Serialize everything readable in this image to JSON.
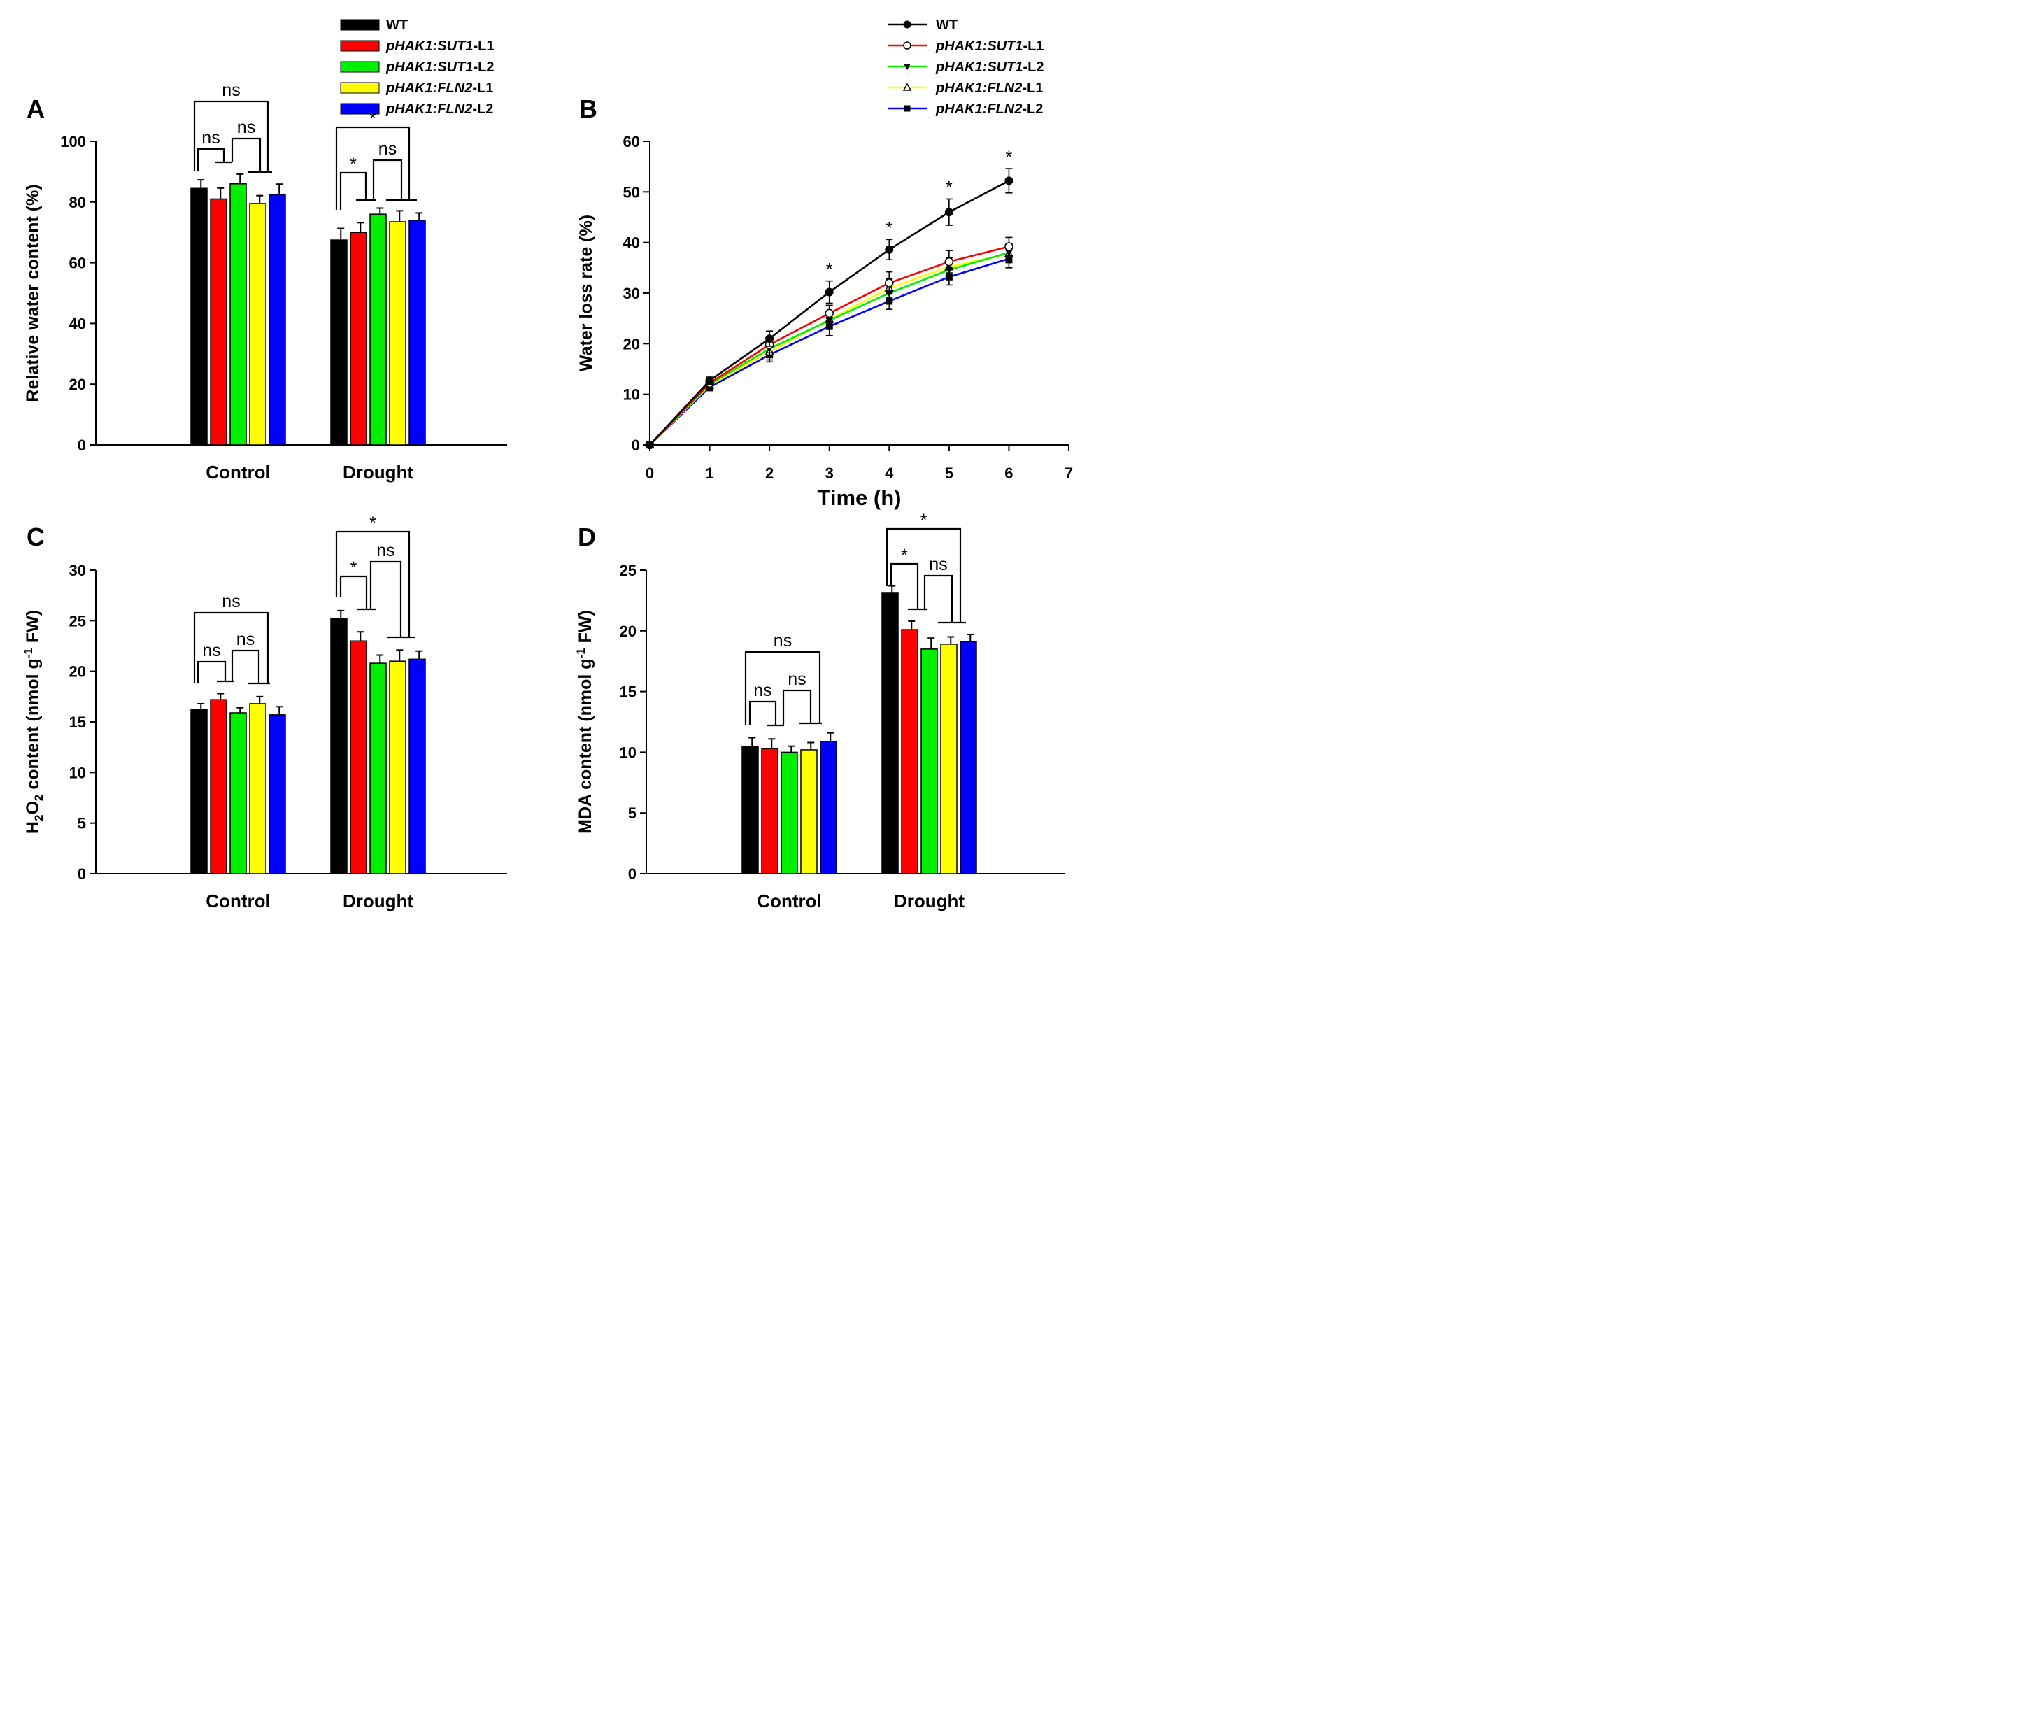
{
  "figure": {
    "legend_bar": [
      "WT",
      "pHAK1:SUT1-L1",
      "pHAK1:SUT1-L2",
      "pHAK1:FLN2-L1",
      "pHAK1:FLN2-L2"
    ],
    "legend_line": [
      "WT",
      "pHAK1:SUT1-L1",
      "pHAK1:SUT1-L2",
      "pHAK1:FLN2-L1",
      "pHAK1:FLN2-L2"
    ],
    "colors": {
      "wt": "#000000",
      "sut1_l1": "#ff0000",
      "sut1_l2": "#00ee00",
      "fln2_l1": "#ffff00",
      "fln2_l2": "#0000ff"
    }
  },
  "chart_data": [
    {
      "id": "A",
      "type": "bar",
      "panel_label": "A",
      "ylabel": "Relative water content (%)",
      "xlabel": "",
      "categories": [
        "Control",
        "Drought"
      ],
      "ylim": [
        0,
        100
      ],
      "yticks": [
        0,
        20,
        40,
        60,
        80,
        100
      ],
      "ytick_labels": [
        "0",
        "20",
        "40",
        "60",
        "80",
        "100"
      ],
      "series": [
        {
          "name": "WT",
          "values": [
            84.5,
            67.5
          ],
          "errors": [
            2.8,
            3.8
          ]
        },
        {
          "name": "pHAK1:SUT1-L1",
          "values": [
            81.0,
            70.0
          ],
          "errors": [
            3.6,
            3.2
          ]
        },
        {
          "name": "pHAK1:SUT1-L2",
          "values": [
            86.0,
            76.0
          ],
          "errors": [
            3.2,
            2.0
          ]
        },
        {
          "name": "pHAK1:FLN2-L1",
          "values": [
            79.5,
            73.5
          ],
          "errors": [
            2.6,
            3.6
          ]
        },
        {
          "name": "pHAK1:FLN2-L2",
          "values": [
            82.5,
            74.0
          ],
          "errors": [
            3.4,
            2.4
          ]
        }
      ],
      "annotations": {
        "Control": [
          "ns",
          "ns",
          "ns"
        ],
        "Drought": [
          "*",
          "ns",
          "*"
        ]
      }
    },
    {
      "id": "B",
      "type": "line",
      "panel_label": "B",
      "ylabel": "Water loss rate (%)",
      "xlabel": "Time (h)",
      "xlim": [
        0,
        7
      ],
      "ylim": [
        0,
        60
      ],
      "xticks": [
        0,
        1,
        2,
        3,
        4,
        5,
        6,
        7
      ],
      "xtick_labels": [
        "0",
        "1",
        "2",
        "3",
        "4",
        "5",
        "6",
        "7"
      ],
      "yticks": [
        0,
        10,
        20,
        30,
        40,
        50,
        60
      ],
      "ytick_labels": [
        "0",
        "10",
        "20",
        "30",
        "40",
        "50",
        "60"
      ],
      "x": [
        0,
        1,
        2,
        3,
        4,
        5,
        6
      ],
      "series": [
        {
          "name": "WT",
          "marker": "filled-circle",
          "values": [
            0,
            12.7,
            21.0,
            30.2,
            38.6,
            46.0,
            52.2
          ],
          "errors": [
            0,
            0.7,
            1.5,
            2.2,
            2.0,
            2.6,
            2.4
          ]
        },
        {
          "name": "pHAK1:SUT1-L1",
          "marker": "open-circle",
          "values": [
            0,
            12.2,
            19.8,
            26.0,
            32.0,
            36.2,
            39.2
          ],
          "errors": [
            0,
            0.7,
            1.6,
            1.6,
            2.2,
            2.2,
            1.8
          ]
        },
        {
          "name": "pHAK1:SUT1-L2",
          "marker": "filled-triangle-down",
          "values": [
            0,
            12.0,
            19.0,
            24.6,
            30.0,
            34.6,
            38.0
          ],
          "errors": [
            0,
            0.7,
            1.6,
            1.6,
            1.8,
            1.8,
            1.8
          ]
        },
        {
          "name": "pHAK1:FLN2-L1",
          "marker": "open-triangle-up",
          "values": [
            0,
            11.8,
            18.4,
            24.8,
            31.0,
            35.2,
            37.8
          ],
          "errors": [
            0,
            0.7,
            1.6,
            1.6,
            1.8,
            1.8,
            1.8
          ]
        },
        {
          "name": "pHAK1:FLN2-L2",
          "marker": "filled-square",
          "values": [
            0,
            11.4,
            17.8,
            23.4,
            28.4,
            33.2,
            36.8
          ],
          "errors": [
            0,
            0.7,
            1.4,
            1.8,
            1.6,
            1.6,
            1.8
          ]
        }
      ],
      "star_x": [
        3,
        4,
        5,
        6
      ],
      "star_labels": [
        "*",
        "*",
        "*",
        "*"
      ]
    },
    {
      "id": "C",
      "type": "bar",
      "panel_label": "C",
      "ylabel": "H2O2 content (nmol g-1 FW)",
      "xlabel": "",
      "ylabel_parts": {
        "a": "H",
        "sub1": "2",
        "b": "O",
        "sub2": "2",
        "c": " content (nmol g",
        "sup": "-1",
        "d": " FW)"
      },
      "categories": [
        "Control",
        "Drought"
      ],
      "ylim": [
        0,
        30
      ],
      "yticks": [
        0,
        5,
        10,
        15,
        20,
        25,
        30
      ],
      "ytick_labels": [
        "0",
        "5",
        "10",
        "15",
        "20",
        "25",
        "30"
      ],
      "series": [
        {
          "name": "WT",
          "values": [
            16.2,
            25.2
          ],
          "errors": [
            0.6,
            0.8
          ]
        },
        {
          "name": "pHAK1:SUT1-L1",
          "values": [
            17.2,
            23.0
          ],
          "errors": [
            0.6,
            0.9
          ]
        },
        {
          "name": "pHAK1:SUT1-L2",
          "values": [
            15.9,
            20.8
          ],
          "errors": [
            0.5,
            0.8
          ]
        },
        {
          "name": "pHAK1:FLN2-L1",
          "values": [
            16.8,
            21.0
          ],
          "errors": [
            0.7,
            1.1
          ]
        },
        {
          "name": "pHAK1:FLN2-L2",
          "values": [
            15.7,
            21.2
          ],
          "errors": [
            0.8,
            0.8
          ]
        }
      ],
      "annotations": {
        "Control": [
          "ns",
          "ns",
          "ns"
        ],
        "Drought": [
          "*",
          "ns",
          "*"
        ]
      }
    },
    {
      "id": "D",
      "type": "bar",
      "panel_label": "D",
      "ylabel": "MDA content (nmol g-1 FW)",
      "xlabel": "",
      "ylabel_parts": {
        "a": "MDA content (nmol g",
        "sup": "-1",
        "b": " FW)"
      },
      "categories": [
        "Control",
        "Drought"
      ],
      "ylim": [
        0,
        25
      ],
      "yticks": [
        0,
        5,
        10,
        15,
        20,
        25
      ],
      "ytick_labels": [
        "0",
        "5",
        "10",
        "15",
        "20",
        "25"
      ],
      "series": [
        {
          "name": "WT",
          "values": [
            10.5,
            23.1
          ],
          "errors": [
            0.7,
            0.6
          ]
        },
        {
          "name": "pHAK1:SUT1-L1",
          "values": [
            10.3,
            20.1
          ],
          "errors": [
            0.8,
            0.7
          ]
        },
        {
          "name": "pHAK1:SUT1-L2",
          "values": [
            10.0,
            18.5
          ],
          "errors": [
            0.5,
            0.9
          ]
        },
        {
          "name": "pHAK1:FLN2-L1",
          "values": [
            10.2,
            18.9
          ],
          "errors": [
            0.6,
            0.6
          ]
        },
        {
          "name": "pHAK1:FLN2-L2",
          "values": [
            10.9,
            19.1
          ],
          "errors": [
            0.7,
            0.6
          ]
        }
      ],
      "annotations": {
        "Control": [
          "ns",
          "ns",
          "ns"
        ],
        "Drought": [
          "*",
          "ns",
          "*"
        ]
      }
    }
  ]
}
